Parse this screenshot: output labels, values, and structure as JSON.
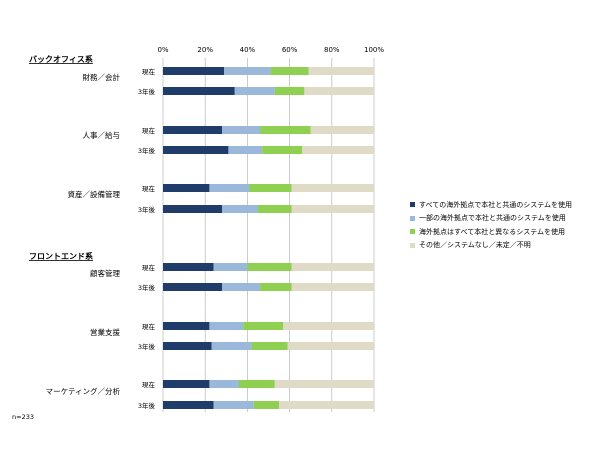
{
  "chart_data": {
    "type": "bar",
    "stacked": true,
    "orientation": "horizontal",
    "xlim": [
      0,
      100
    ],
    "xticks": [
      "0%",
      "20%",
      "40%",
      "60%",
      "80%",
      "100%"
    ],
    "grid": true,
    "legend_position": "right",
    "series": [
      {
        "name": "すべての海外拠点で本社と共通のシステムを使用",
        "color": "#1f3c6b"
      },
      {
        "name": "一部の海外拠点で本社と共通のシステムを使用",
        "color": "#9bb7d9"
      },
      {
        "name": "海外拠点はすべて本社と異なるシステムを使用",
        "color": "#8fcf52"
      },
      {
        "name": "その他／システムなし／未定／不明",
        "color": "#e0dbc6"
      }
    ],
    "groups": [
      {
        "label": "バックオフィス系"
      },
      {
        "label": "フロントエンド系"
      }
    ],
    "categories": [
      {
        "label": "財務／会計",
        "rows": [
          {
            "label": "現在",
            "values": [
              29,
              22,
              18,
              31
            ]
          },
          {
            "label": "3年後",
            "values": [
              34,
              19,
              14,
              33
            ]
          }
        ]
      },
      {
        "label": "人事／給与",
        "rows": [
          {
            "label": "現在",
            "values": [
              28,
              18,
              24,
              30
            ]
          },
          {
            "label": "3年後",
            "values": [
              31,
              16,
              19,
              34
            ]
          }
        ]
      },
      {
        "label": "資産／設備管理",
        "rows": [
          {
            "label": "現在",
            "values": [
              22,
              19,
              20,
              39
            ]
          },
          {
            "label": "3年後",
            "values": [
              28,
              17,
              16,
              39
            ]
          }
        ]
      },
      {
        "label": "顧客管理",
        "rows": [
          {
            "label": "現在",
            "values": [
              24,
              16,
              21,
              39
            ]
          },
          {
            "label": "3年後",
            "values": [
              28,
              18,
              15,
              39
            ]
          }
        ]
      },
      {
        "label": "営業支援",
        "rows": [
          {
            "label": "現在",
            "values": [
              22,
              16,
              19,
              43
            ]
          },
          {
            "label": "3年後",
            "values": [
              23,
              19,
              17,
              41
            ]
          }
        ]
      },
      {
        "label": "マーケティング／分析",
        "rows": [
          {
            "label": "現在",
            "values": [
              22,
              14,
              17,
              47
            ]
          },
          {
            "label": "3年後",
            "values": [
              24,
              19,
              12,
              45
            ]
          }
        ]
      }
    ],
    "note": "n=233"
  }
}
